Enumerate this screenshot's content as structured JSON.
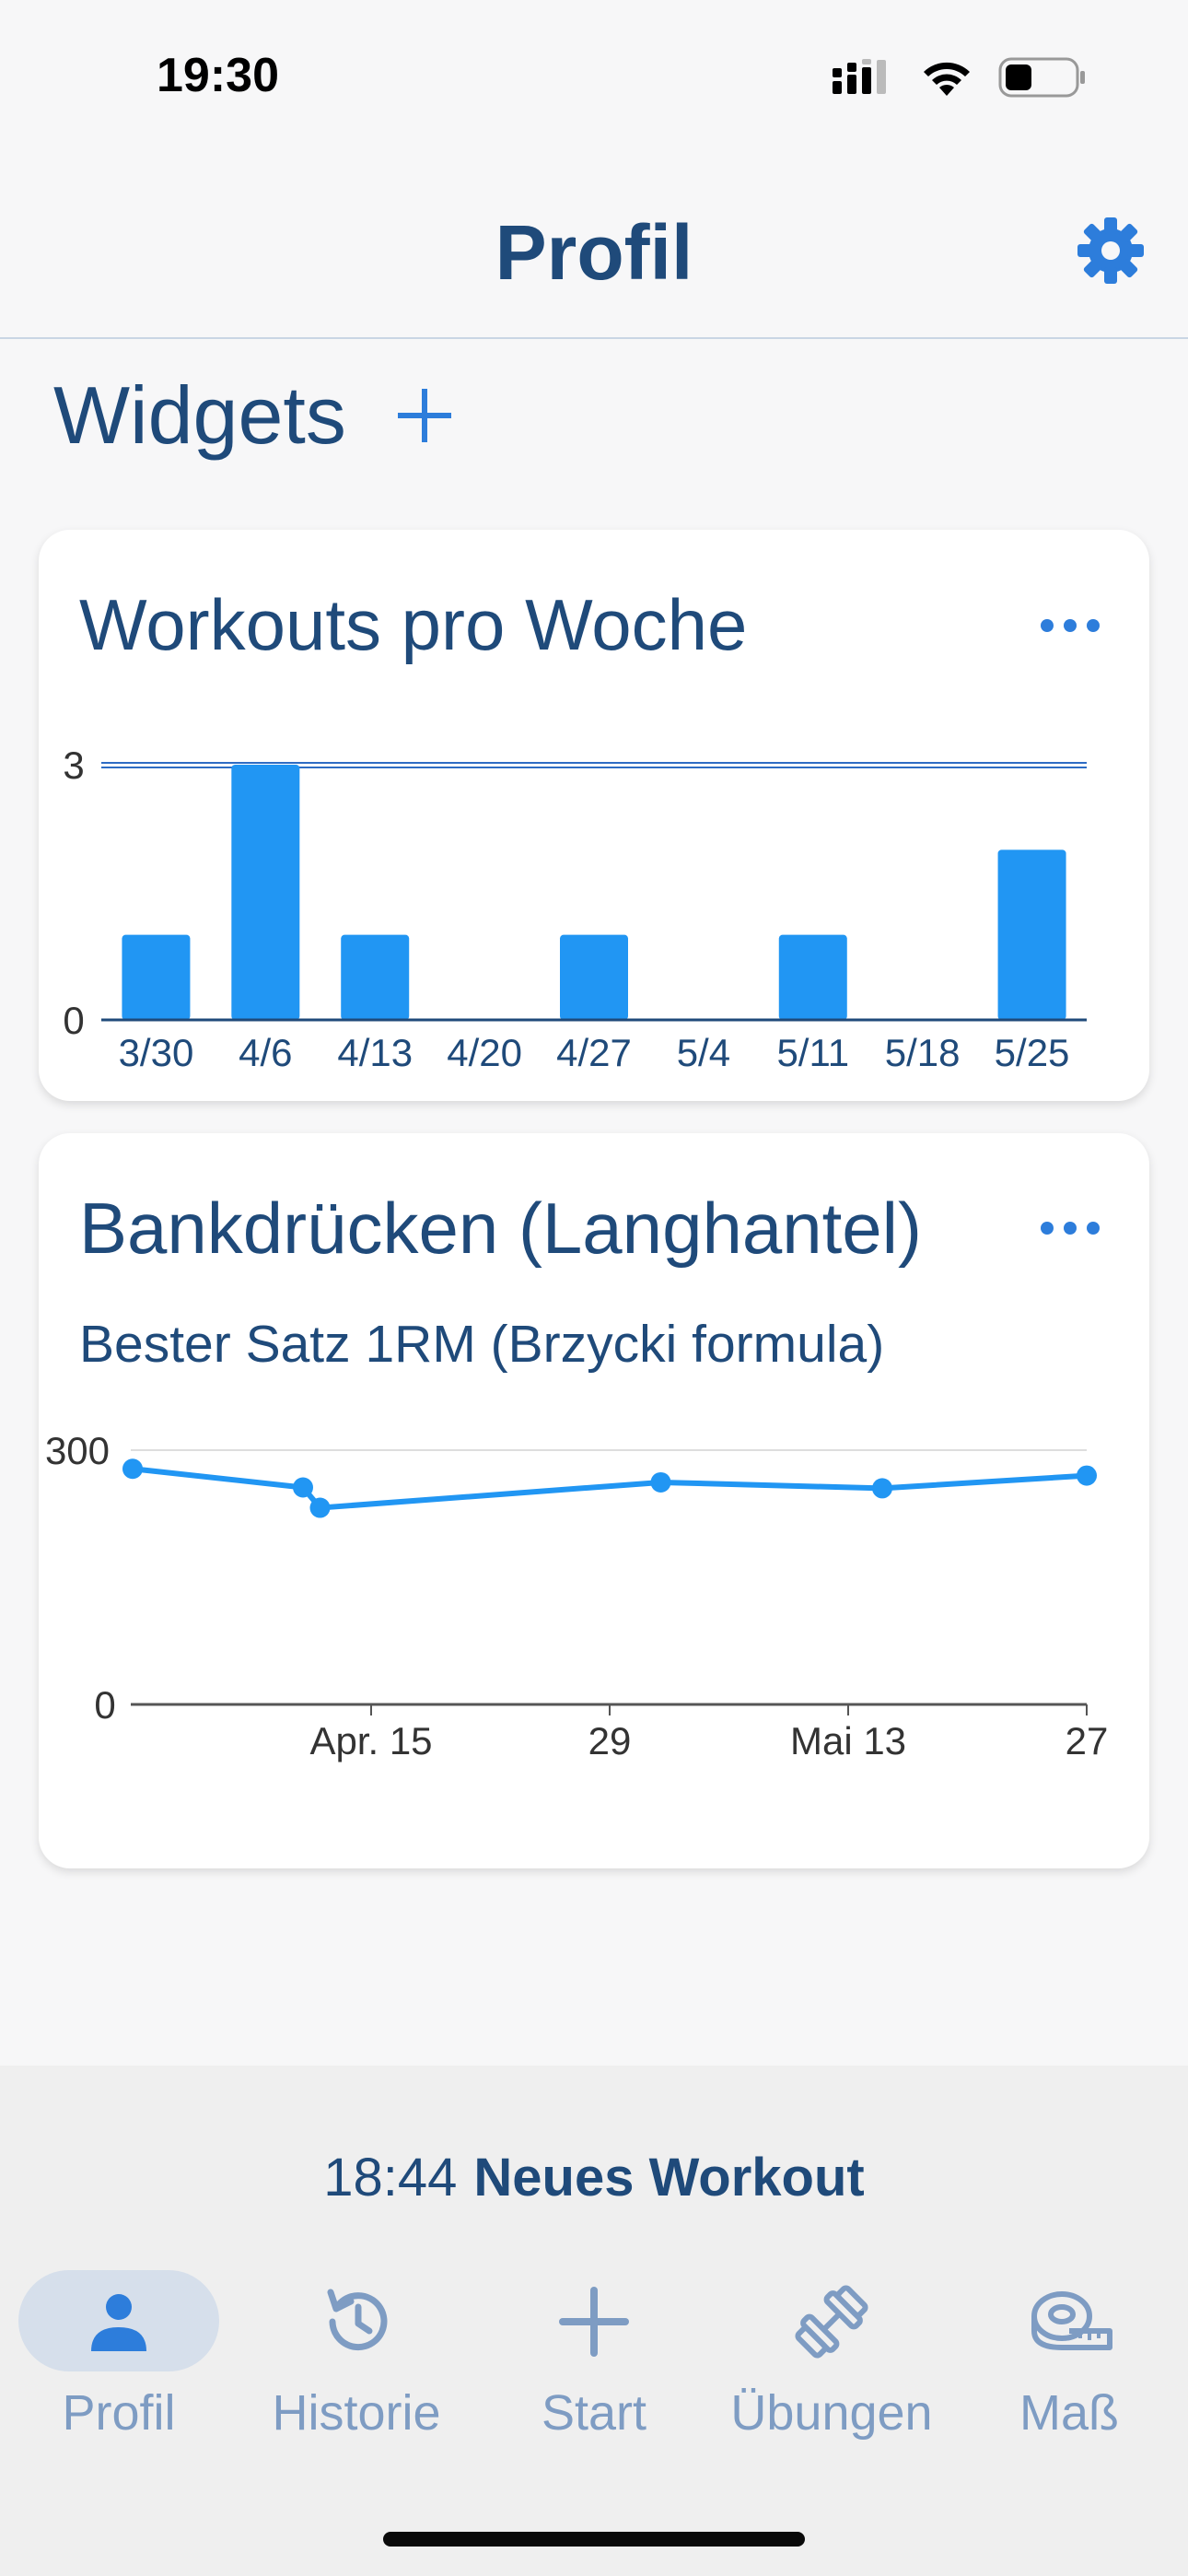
{
  "status_bar": {
    "time": "19:30"
  },
  "header": {
    "title": "Profil"
  },
  "widgets": {
    "title": "Widgets"
  },
  "workouts_widget": {
    "title": "Workouts pro Woche"
  },
  "bench_widget": {
    "title": "Bankdrücken (Langhantel)",
    "subtitle": "Bester Satz 1RM (Brzycki formula)"
  },
  "chart_data": [
    {
      "type": "bar",
      "title": "Workouts pro Woche",
      "categories": [
        "3/30",
        "4/6",
        "4/13",
        "4/20",
        "4/27",
        "5/4",
        "5/11",
        "5/18",
        "5/25"
      ],
      "values": [
        1,
        3,
        1,
        0,
        1,
        0,
        1,
        0,
        2
      ],
      "ylim": [
        0,
        3
      ],
      "yticks": [
        "0",
        "3"
      ],
      "reference_line": 3,
      "color": "#2196f3"
    },
    {
      "type": "line",
      "title": "Bankdrücken (Langhantel)",
      "subtitle": "Bester Satz 1RM (Brzycki formula)",
      "x": [
        "2025-04-01",
        "2025-04-11",
        "2025-04-12",
        "2025-05-02",
        "2025-05-15",
        "2025-05-27"
      ],
      "y": [
        278,
        256,
        232,
        262,
        255,
        270
      ],
      "ylim": [
        0,
        300
      ],
      "xlim": [
        "2025-04-01",
        "2025-05-27"
      ],
      "yticks": [
        "0",
        "300"
      ],
      "xticks": [
        {
          "date": "2025-04-15",
          "label": "Apr. 15"
        },
        {
          "date": "2025-04-29",
          "label": "29"
        },
        {
          "date": "2025-05-13",
          "label": "Mai 13"
        },
        {
          "date": "2025-05-27",
          "label": "27"
        }
      ],
      "color": "#2196f3"
    }
  ],
  "active_workout": {
    "elapsed": "18:44",
    "name": "Neues Workout"
  },
  "tabs": [
    {
      "label": "Profil",
      "icon": "person-icon",
      "active": true
    },
    {
      "label": "Historie",
      "icon": "history-icon",
      "active": false
    },
    {
      "label": "Start",
      "icon": "plus-icon",
      "active": false
    },
    {
      "label": "Übungen",
      "icon": "dumbbell-icon",
      "active": false
    },
    {
      "label": "Maß",
      "icon": "tape-measure-icon",
      "active": false
    }
  ],
  "colors": {
    "primary_text": "#1f4a7a",
    "accent": "#2d7ddb",
    "chart": "#2196f3",
    "tab_inactive": "#7e9cc3"
  }
}
